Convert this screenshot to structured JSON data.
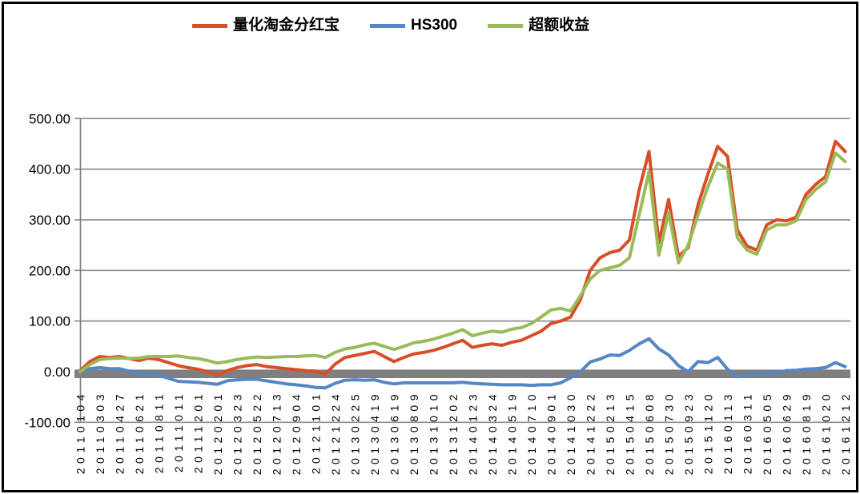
{
  "figure": {
    "background": "#FFFFFF",
    "border_color": "#000000"
  },
  "chart_data": {
    "type": "line",
    "title": "",
    "legend_position": "top",
    "grid": true,
    "gridline_color": "#8C8C8C",
    "axis_line_color": "#808080",
    "zero_axis_band_color": "#7F7F7F",
    "y_axis": {
      "min": -100,
      "max": 500,
      "tick_step": 100,
      "tick_labels": [
        "500.00",
        "400.00",
        "300.00",
        "200.00",
        "100.00",
        "0.00",
        "-100.00"
      ]
    },
    "x_axis": {
      "labels": [
        "20110104",
        "20110303",
        "20110427",
        "20110621",
        "20110811",
        "20111011",
        "20111201",
        "20120201",
        "20120323",
        "20120522",
        "20120713",
        "20120904",
        "20121101",
        "20121224",
        "20130225",
        "20130419",
        "20130619",
        "20130809",
        "20131010",
        "20131202",
        "20140123",
        "20140324",
        "20140519",
        "20140710",
        "20140901",
        "20141030",
        "20141222",
        "20150213",
        "20150415",
        "20150608",
        "20150730",
        "20150923",
        "20151120",
        "20160113",
        "20160311",
        "20160505",
        "20160629",
        "20160819",
        "20161020",
        "20161212"
      ],
      "samples_per_label_interval": 2,
      "note": "series values are sampled at each axis label and at the midpoint between labels (79 samples)"
    },
    "series": [
      {
        "name": "量化淘金分红宝",
        "color": "#D94E26",
        "values": [
          2,
          20,
          30,
          28,
          30,
          26,
          22,
          27,
          24,
          18,
          12,
          8,
          5,
          0,
          -7,
          2,
          8,
          12,
          14,
          10,
          8,
          6,
          4,
          2,
          1,
          -5,
          15,
          28,
          32,
          36,
          40,
          30,
          20,
          28,
          35,
          38,
          42,
          48,
          55,
          62,
          48,
          52,
          55,
          52,
          58,
          62,
          71,
          80,
          95,
          100,
          108,
          142,
          200,
          225,
          235,
          240,
          260,
          360,
          435,
          255,
          340,
          228,
          245,
          330,
          390,
          445,
          425,
          280,
          248,
          240,
          290,
          300,
          298,
          305,
          350,
          370,
          385,
          455,
          435
        ]
      },
      {
        "name": "HS300",
        "color": "#5586C5",
        "values": [
          0,
          6,
          8,
          6,
          6,
          1,
          -3,
          -4,
          -7,
          -13,
          -19,
          -20,
          -21,
          -23,
          -25,
          -18,
          -16,
          -15,
          -15,
          -18,
          -21,
          -24,
          -26,
          -28,
          -31,
          -32,
          -23,
          -17,
          -16,
          -17,
          -16,
          -21,
          -24,
          -22,
          -22,
          -22,
          -22,
          -22,
          -22,
          -21,
          -23,
          -24,
          -25,
          -26,
          -26,
          -26,
          -27,
          -26,
          -26,
          -22,
          -12,
          0,
          19,
          25,
          33,
          32,
          42,
          55,
          65,
          45,
          33,
          12,
          0,
          20,
          18,
          28,
          5,
          -10,
          -6,
          -4,
          -3,
          -2,
          2,
          3,
          5,
          6,
          8,
          18,
          10
        ]
      },
      {
        "name": "超额收益",
        "color": "#9BBB59",
        "values": [
          0,
          14,
          24,
          26,
          27,
          26,
          27,
          30,
          30,
          30,
          31,
          28,
          26,
          22,
          17,
          20,
          24,
          27,
          29,
          28,
          29,
          30,
          30,
          31,
          32,
          28,
          38,
          45,
          48,
          53,
          56,
          50,
          44,
          50,
          57,
          60,
          64,
          70,
          76,
          83,
          71,
          76,
          80,
          78,
          84,
          87,
          95,
          108,
          122,
          125,
          120,
          150,
          183,
          200,
          205,
          210,
          225,
          310,
          395,
          230,
          315,
          215,
          250,
          310,
          365,
          412,
          400,
          265,
          240,
          232,
          280,
          290,
          290,
          298,
          340,
          360,
          375,
          432,
          415
        ]
      }
    ]
  }
}
